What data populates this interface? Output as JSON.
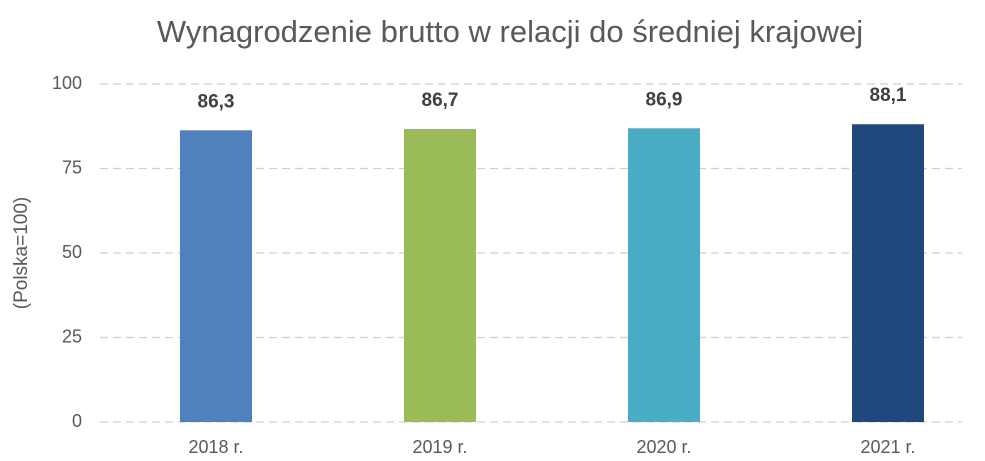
{
  "chart_data": {
    "type": "bar",
    "title": "Wynagrodzenie brutto w relacji do średniej krajowej",
    "y_label": "(Polska=100)",
    "categories": [
      "2018 r.",
      "2019 r.",
      "2020 r.",
      "2021 r."
    ],
    "values": [
      86.3,
      86.7,
      86.9,
      88.1
    ],
    "value_labels": [
      "86,3",
      "86,7",
      "86,9",
      "88,1"
    ],
    "colors": [
      "#4f81bd",
      "#9bbb59",
      "#4bacc6",
      "#1f497d"
    ],
    "ylim": [
      0,
      100
    ],
    "yticks": [
      0,
      25,
      50,
      75,
      100
    ],
    "grid": true
  }
}
